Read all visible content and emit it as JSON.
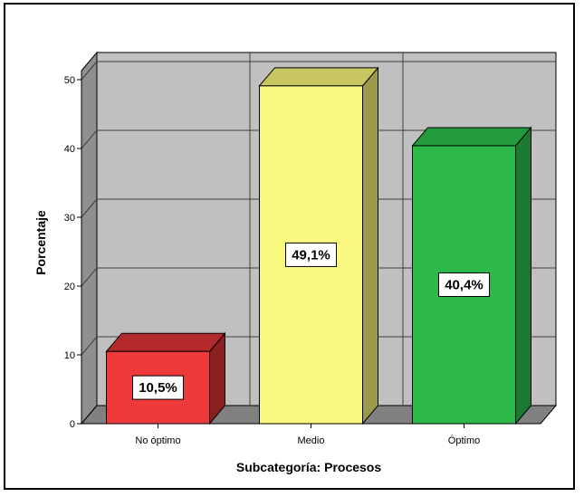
{
  "chart_data": {
    "type": "bar",
    "categories": [
      "No óptimo",
      "Medio",
      "Óptimo"
    ],
    "values": [
      10.5,
      49.1,
      40.4
    ],
    "data_labels": [
      "10,5%",
      "49,1%",
      "40,4%"
    ],
    "title": "",
    "xlabel": "Subcategoría: Procesos",
    "ylabel": "Porcentaje",
    "ylim": [
      0,
      50
    ],
    "yticks": [
      "0",
      "10",
      "20",
      "30",
      "40",
      "50"
    ],
    "grid": true,
    "style": "3d",
    "colors": {
      "bar_front": [
        "#ee3a3a",
        "#f8f77e",
        "#2db94a"
      ],
      "bar_side": [
        "#8c1f1f",
        "#9c9a4a",
        "#1c7a30"
      ],
      "bar_top": [
        "#b42a2a",
        "#c8c660",
        "#239a3c"
      ],
      "wall": "#c0c0c0",
      "wall_side": "#8f8f8f",
      "floor": "#808080",
      "grid": "#404040"
    }
  }
}
